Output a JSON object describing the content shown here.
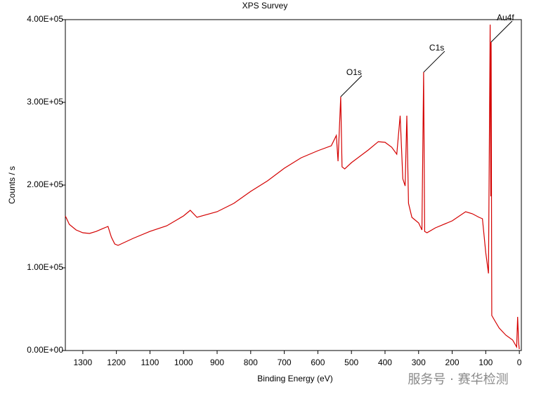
{
  "chart_data": {
    "type": "line",
    "title": "XPS Survey",
    "x_label": "Binding Energy (eV)",
    "y_label": "Counts / s",
    "xlim": [
      1352,
      -6
    ],
    "ylim": [
      0,
      400000
    ],
    "xticks": [
      1300,
      1200,
      1100,
      1000,
      900,
      800,
      700,
      600,
      500,
      400,
      300,
      200,
      100,
      0
    ],
    "yticks": [
      {
        "value": 0,
        "label": "0.00E+00"
      },
      {
        "value": 100000,
        "label": "1.00E+05"
      },
      {
        "value": 200000,
        "label": "2.00E+05"
      },
      {
        "value": 300000,
        "label": "3.00E+05"
      },
      {
        "value": 400000,
        "label": "4.00E+05"
      }
    ],
    "series": [
      {
        "name": "XPS Survey",
        "color": "#d40000",
        "x": [
          1352,
          1340,
          1320,
          1300,
          1280,
          1260,
          1240,
          1225,
          1215,
          1205,
          1195,
          1150,
          1100,
          1050,
          1000,
          980,
          960,
          900,
          850,
          800,
          750,
          700,
          650,
          600,
          560,
          545,
          540,
          532,
          528,
          520,
          500,
          450,
          420,
          400,
          380,
          365,
          355,
          347,
          340,
          335,
          330,
          320,
          300,
          290,
          285,
          282,
          275,
          250,
          200,
          160,
          140,
          120,
          110,
          100,
          92,
          87,
          85,
          84,
          82,
          70,
          60,
          40,
          20,
          8,
          5,
          2,
          0
        ],
        "values": [
          162700,
          152500,
          145800,
          142400,
          141500,
          144000,
          147500,
          150000,
          137000,
          128800,
          127100,
          135600,
          144000,
          150800,
          162700,
          169500,
          161000,
          167800,
          178000,
          192400,
          205100,
          220300,
          233000,
          241500,
          247500,
          260000,
          228800,
          306800,
          222000,
          219500,
          227100,
          242400,
          252500,
          251700,
          245800,
          237300,
          283900,
          207600,
          199000,
          283900,
          178000,
          161000,
          154200,
          145800,
          336400,
          144000,
          142400,
          148300,
          156800,
          167800,
          165300,
          161000,
          159300,
          118600,
          93200,
          394000,
          186400,
          372900,
          42400,
          33900,
          27100,
          18600,
          12700,
          4200,
          40700,
          8500,
          1700
        ]
      }
    ],
    "annotations": [
      {
        "text": "O1s",
        "x": 532,
        "y": 306800
      },
      {
        "text": "C1s",
        "x": 285,
        "y": 336400
      },
      {
        "text": "Au4f",
        "x": 84,
        "y": 372900
      }
    ]
  },
  "watermark": "服务号 · 赛华检测"
}
